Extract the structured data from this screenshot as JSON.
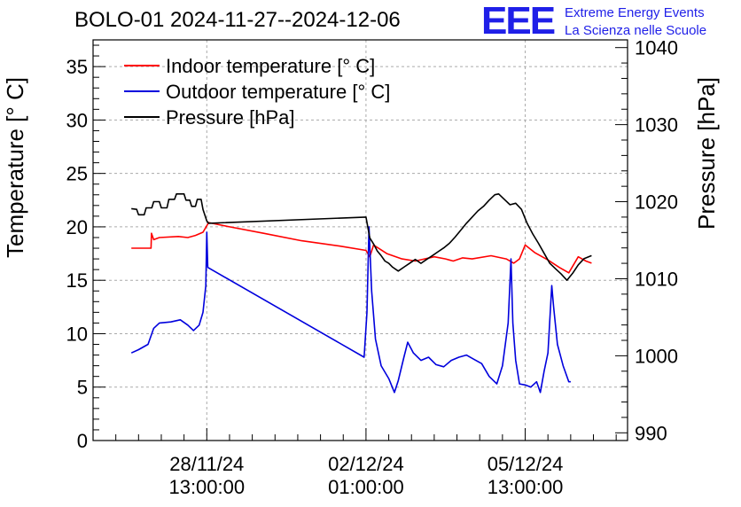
{
  "header": {
    "title": "BOLO-01 2024-11-27--2024-12-06"
  },
  "logo": {
    "mark": "EEE",
    "line1": "Extreme Energy Events",
    "line2": "La Scienza nelle Scuole",
    "color": "#1f1fe8"
  },
  "chart_data": {
    "type": "line",
    "title": "BOLO-01 2024-11-27--2024-12-06",
    "ylabel": "Temperature [° C]",
    "y2label": "Pressure [hPa]",
    "ylim": [
      0,
      37.5
    ],
    "y2lim": [
      989,
      1041
    ],
    "y_ticks": [
      0,
      5,
      10,
      15,
      20,
      25,
      30,
      35
    ],
    "y2_ticks": [
      990,
      1000,
      1010,
      1020,
      1030,
      1040
    ],
    "x_tick_labels": [
      {
        "date": "28/11/24",
        "time": "13:00:00",
        "x_hours": 0
      },
      {
        "date": "02/12/24",
        "time": "01:00:00",
        "x_hours": 84
      },
      {
        "date": "05/12/24",
        "time": "13:00:00",
        "x_hours": 168
      }
    ],
    "x_unit": "hours relative to 28/11/24 13:00:00",
    "xlim": [
      -60,
      222
    ],
    "grid": true,
    "legend_position": "top-left",
    "colors": {
      "indoor": "#ff0000",
      "outdoor": "#0000dd",
      "pressure": "#000000",
      "grid": "#aaaaaa"
    },
    "series": [
      {
        "name": "Indoor temperature [° C]",
        "axis": "left",
        "color": "#ff0000",
        "points": [
          [
            -39.8,
            18.0
          ],
          [
            -34,
            18.0
          ],
          [
            -29.4,
            18.0
          ],
          [
            -29.2,
            19.4
          ],
          [
            -28,
            18.8
          ],
          [
            -25,
            19.0
          ],
          [
            -15,
            19.1
          ],
          [
            -10,
            19.0
          ],
          [
            -6,
            19.2
          ],
          [
            -2,
            19.5
          ],
          [
            1,
            20.4
          ],
          [
            12,
            20.0
          ],
          [
            30,
            19.4
          ],
          [
            50,
            18.7
          ],
          [
            70,
            18.2
          ],
          [
            84,
            17.8
          ],
          [
            86,
            17.2
          ],
          [
            88,
            18.3
          ],
          [
            95,
            17.5
          ],
          [
            103,
            17.0
          ],
          [
            110,
            16.8
          ],
          [
            120,
            17.2
          ],
          [
            126,
            17.0
          ],
          [
            130,
            16.8
          ],
          [
            135,
            17.1
          ],
          [
            140,
            17.0
          ],
          [
            150,
            17.3
          ],
          [
            158,
            17.0
          ],
          [
            162,
            16.6
          ],
          [
            165,
            17.0
          ],
          [
            168,
            18.3
          ],
          [
            173,
            17.6
          ],
          [
            180,
            16.9
          ],
          [
            186,
            16.2
          ],
          [
            191,
            15.7
          ],
          [
            196,
            17.2
          ],
          [
            200,
            16.8
          ],
          [
            203,
            16.6
          ]
        ]
      },
      {
        "name": "Outdoor temperature [° C]",
        "axis": "left",
        "color": "#0000dd",
        "points": [
          [
            -39.8,
            8.2
          ],
          [
            -36,
            8.5
          ],
          [
            -31,
            9.0
          ],
          [
            -28,
            10.5
          ],
          [
            -25,
            11.0
          ],
          [
            -19,
            11.1
          ],
          [
            -14,
            11.3
          ],
          [
            -10,
            10.8
          ],
          [
            -7,
            10.3
          ],
          [
            -4,
            10.8
          ],
          [
            -2,
            12.0
          ],
          [
            -0.5,
            14.5
          ],
          [
            0,
            19.5
          ],
          [
            0.5,
            16.2
          ],
          [
            83,
            7.8
          ],
          [
            84.5,
            12.0
          ],
          [
            85.6,
            20.0
          ],
          [
            87,
            14.0
          ],
          [
            89,
            9.5
          ],
          [
            92,
            7.0
          ],
          [
            96,
            5.8
          ],
          [
            99,
            4.5
          ],
          [
            101,
            5.6
          ],
          [
            104,
            7.8
          ],
          [
            106,
            9.2
          ],
          [
            109,
            8.2
          ],
          [
            113,
            7.5
          ],
          [
            117,
            7.8
          ],
          [
            121,
            7.1
          ],
          [
            125,
            6.9
          ],
          [
            129,
            7.5
          ],
          [
            133,
            7.8
          ],
          [
            137,
            8.0
          ],
          [
            141,
            7.6
          ],
          [
            145,
            7.2
          ],
          [
            149,
            6.0
          ],
          [
            153,
            5.3
          ],
          [
            156,
            7.0
          ],
          [
            159,
            11.0
          ],
          [
            160.5,
            17.0
          ],
          [
            161.5,
            11.0
          ],
          [
            163,
            7.5
          ],
          [
            165,
            5.3
          ],
          [
            168,
            5.2
          ],
          [
            171,
            5.0
          ],
          [
            174,
            5.5
          ],
          [
            176,
            4.5
          ],
          [
            178,
            6.5
          ],
          [
            180,
            8.2
          ],
          [
            182,
            14.5
          ],
          [
            183,
            12.5
          ],
          [
            185,
            9.0
          ],
          [
            188,
            7.0
          ],
          [
            191,
            5.5
          ],
          [
            192,
            5.5
          ]
        ]
      },
      {
        "name": "Pressure [hPa]",
        "axis": "right",
        "color": "#000000",
        "points": [
          [
            -39.8,
            1019.1
          ],
          [
            -37,
            1019.0
          ],
          [
            -36,
            1018.3
          ],
          [
            -33,
            1018.3
          ],
          [
            -32,
            1019.2
          ],
          [
            -29,
            1019.2
          ],
          [
            -28,
            1020.0
          ],
          [
            -25,
            1020.0
          ],
          [
            -24,
            1019.2
          ],
          [
            -21,
            1019.2
          ],
          [
            -20,
            1020.3
          ],
          [
            -17,
            1020.3
          ],
          [
            -16,
            1021.0
          ],
          [
            -12,
            1021.0
          ],
          [
            -11,
            1020.2
          ],
          [
            -9,
            1020.2
          ],
          [
            -8,
            1019.4
          ],
          [
            -6,
            1019.4
          ],
          [
            -5,
            1020.3
          ],
          [
            -3,
            1020.3
          ],
          [
            -2,
            1019.0
          ],
          [
            0,
            1017.5
          ],
          [
            1,
            1017.2
          ],
          [
            84,
            1018.0
          ],
          [
            86,
            1015.3
          ],
          [
            88,
            1014.5
          ],
          [
            90,
            1013.6
          ],
          [
            92,
            1013.0
          ],
          [
            94,
            1012.3
          ],
          [
            96,
            1012.0
          ],
          [
            98,
            1011.5
          ],
          [
            101,
            1011.0
          ],
          [
            104,
            1011.5
          ],
          [
            107,
            1012.0
          ],
          [
            110,
            1012.5
          ],
          [
            113,
            1012.0
          ],
          [
            116,
            1012.5
          ],
          [
            119,
            1013.0
          ],
          [
            122,
            1013.5
          ],
          [
            125,
            1014.0
          ],
          [
            128,
            1014.6
          ],
          [
            131,
            1015.4
          ],
          [
            134,
            1016.3
          ],
          [
            137,
            1017.2
          ],
          [
            140,
            1018.0
          ],
          [
            143,
            1018.8
          ],
          [
            146,
            1019.4
          ],
          [
            149,
            1020.2
          ],
          [
            152,
            1020.9
          ],
          [
            154,
            1021.0
          ],
          [
            157,
            1020.3
          ],
          [
            160,
            1019.6
          ],
          [
            163,
            1019.8
          ],
          [
            166,
            1019.0
          ],
          [
            169,
            1017.2
          ],
          [
            172,
            1015.8
          ],
          [
            175,
            1014.6
          ],
          [
            178,
            1013.3
          ],
          [
            181,
            1012.0
          ],
          [
            184,
            1011.3
          ],
          [
            187,
            1010.6
          ],
          [
            190,
            1009.8
          ],
          [
            193,
            1010.7
          ],
          [
            196,
            1011.8
          ],
          [
            199,
            1012.6
          ],
          [
            203,
            1013.0
          ]
        ]
      }
    ]
  }
}
